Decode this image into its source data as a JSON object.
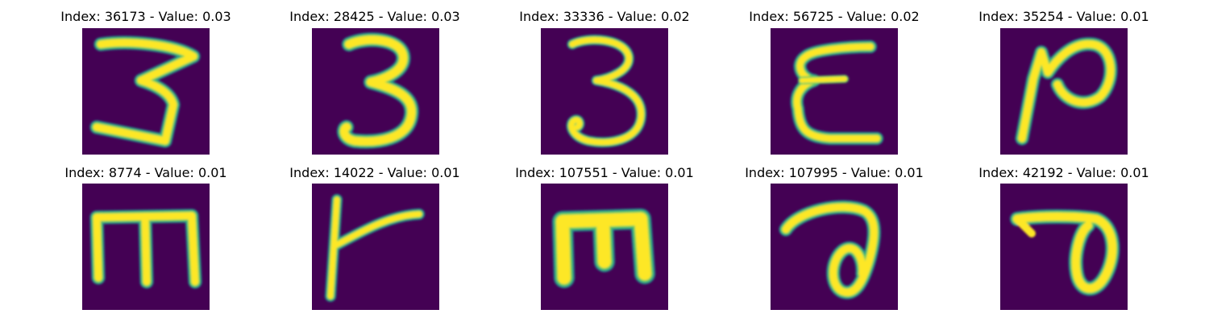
{
  "figure": {
    "colors": {
      "background": "#440154",
      "stroke_core": "#fde725",
      "stroke_mid": "#5ec962",
      "stroke_edge": "#21918c",
      "stroke_fade": "#3b528b",
      "title_text": "#000000"
    },
    "panels": [
      {
        "title": "Index: 36173 - Value: 0.03",
        "glyph": "script 3 with flat top and angled bottom"
      },
      {
        "title": "Index: 28425 - Value: 0.03",
        "glyph": "digit 3"
      },
      {
        "title": "Index: 33336 - Value: 0.02",
        "glyph": "digit 3 with curled tail"
      },
      {
        "title": "Index: 56725 - Value: 0.02",
        "glyph": "reversed E / epsilon shape"
      },
      {
        "title": "Index: 35254 - Value: 0.01",
        "glyph": "loop letter resembling N / R"
      },
      {
        "title": "Index: 8774 - Value: 0.01",
        "glyph": "letter m with squared arches"
      },
      {
        "title": "Index: 14022 - Value: 0.01",
        "glyph": "vertical stroke with rising branch"
      },
      {
        "title": "Index: 107551 - Value: 0.01",
        "glyph": "bold letter m"
      },
      {
        "title": "Index: 107995 - Value: 0.01",
        "glyph": "curved hook with loop"
      },
      {
        "title": "Index: 42192 - Value: 0.01",
        "glyph": "flat top stroke with descending loop"
      }
    ]
  }
}
